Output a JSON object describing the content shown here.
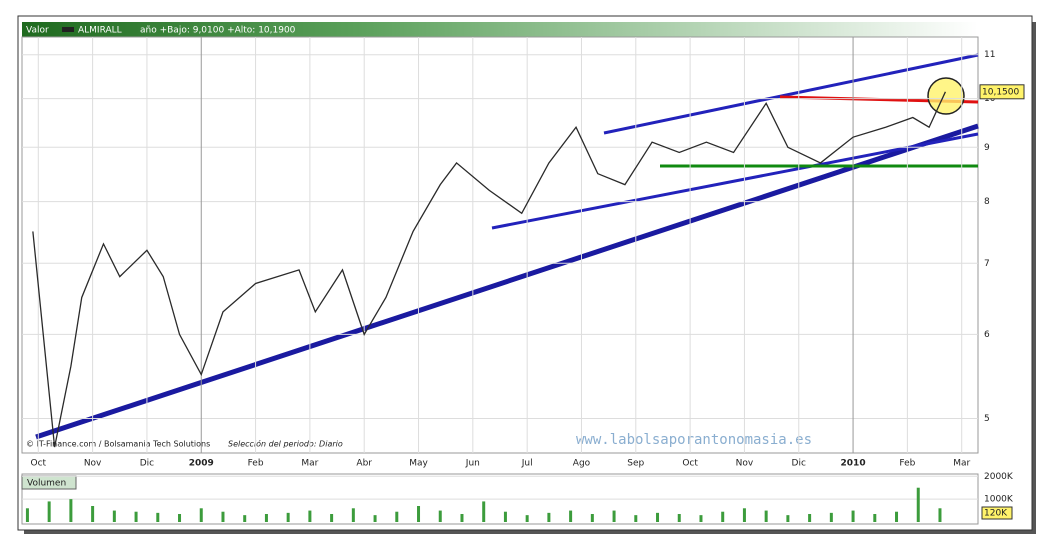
{
  "chart_data": {
    "type": "line",
    "header": {
      "label": "Valor",
      "symbol": "ALMIRALL",
      "range_text": "año +Bajo: 9,0100 +Alto: 10,1900"
    },
    "credit": "© IT-Finance.com / Bolsamania Tech Solutions",
    "period": "Selección del periodo: Diario",
    "watermark": "www.labolsaporantonomasia.es",
    "log_scale": true,
    "grid": true,
    "color": "#2a2a2a",
    "x": [
      -0.1,
      0.3,
      0.6,
      0.8,
      1.2,
      1.5,
      2.0,
      2.3,
      2.6,
      3.0,
      3.4,
      4.0,
      4.8,
      5.1,
      5.6,
      6.0,
      6.4,
      6.9,
      7.4,
      7.7,
      8.3,
      8.9,
      9.4,
      9.9,
      10.3,
      10.8,
      11.3,
      11.8,
      12.3,
      12.8,
      13.4,
      13.8,
      14.4,
      15.0,
      15.6,
      16.1,
      16.4,
      16.7
    ],
    "values": [
      7.5,
      4.7,
      5.6,
      6.5,
      7.3,
      6.8,
      7.2,
      6.8,
      6.0,
      5.5,
      6.3,
      6.7,
      6.9,
      6.3,
      6.9,
      6.0,
      6.5,
      7.5,
      8.3,
      8.7,
      8.2,
      7.8,
      8.7,
      9.4,
      8.5,
      8.3,
      9.1,
      8.9,
      9.1,
      8.9,
      9.9,
      9.0,
      8.7,
      9.2,
      9.4,
      9.6,
      9.4,
      10.15
    ],
    "last_price": 10.15,
    "last_price_label": "10,1500",
    "xlim": [
      -0.3,
      17.3
    ],
    "xticks": [
      {
        "value": 0,
        "label": "Oct"
      },
      {
        "value": 1,
        "label": "Nov"
      },
      {
        "value": 2,
        "label": "Dic"
      },
      {
        "value": 3,
        "label": "2009"
      },
      {
        "value": 4,
        "label": "Feb"
      },
      {
        "value": 5,
        "label": "Mar"
      },
      {
        "value": 6,
        "label": "Abr"
      },
      {
        "value": 7,
        "label": "May"
      },
      {
        "value": 8,
        "label": "Jun"
      },
      {
        "value": 9,
        "label": "Jul"
      },
      {
        "value": 10,
        "label": "Ago"
      },
      {
        "value": 11,
        "label": "Sep"
      },
      {
        "value": 12,
        "label": "Oct"
      },
      {
        "value": 13,
        "label": "Nov"
      },
      {
        "value": 14,
        "label": "Dic"
      },
      {
        "value": 15,
        "label": "2010"
      },
      {
        "value": 16,
        "label": "Feb"
      },
      {
        "value": 17,
        "label": "Mar"
      }
    ],
    "ylim": [
      4.64,
      11.43
    ],
    "yticks": [
      5,
      6,
      7,
      8,
      9,
      10,
      11
    ],
    "volume": {
      "label": "Volumen",
      "color": "#3c9c3c",
      "x": [
        -0.2,
        0.2,
        0.6,
        1.0,
        1.4,
        1.8,
        2.2,
        2.6,
        3.0,
        3.4,
        3.8,
        4.2,
        4.6,
        5.0,
        5.4,
        5.8,
        6.2,
        6.6,
        7.0,
        7.4,
        7.8,
        8.2,
        8.6,
        9.0,
        9.4,
        9.8,
        10.2,
        10.6,
        11.0,
        11.4,
        11.8,
        12.2,
        12.6,
        13.0,
        13.4,
        13.8,
        14.2,
        14.6,
        15.0,
        15.4,
        15.8,
        16.2,
        16.6
      ],
      "values": [
        600,
        900,
        1000,
        700,
        500,
        450,
        400,
        350,
        600,
        450,
        300,
        350,
        400,
        500,
        350,
        600,
        300,
        450,
        700,
        500,
        350,
        900,
        450,
        300,
        400,
        500,
        350,
        500,
        300,
        400,
        350,
        300,
        450,
        600,
        500,
        300,
        350,
        400,
        500,
        350,
        450,
        1500,
        600
      ],
      "ylim": [
        0,
        2100
      ],
      "yticks": [
        {
          "value": 2000,
          "label": "2000K"
        },
        {
          "value": 1000,
          "label": "1000K"
        }
      ],
      "current_label": "120K"
    }
  }
}
